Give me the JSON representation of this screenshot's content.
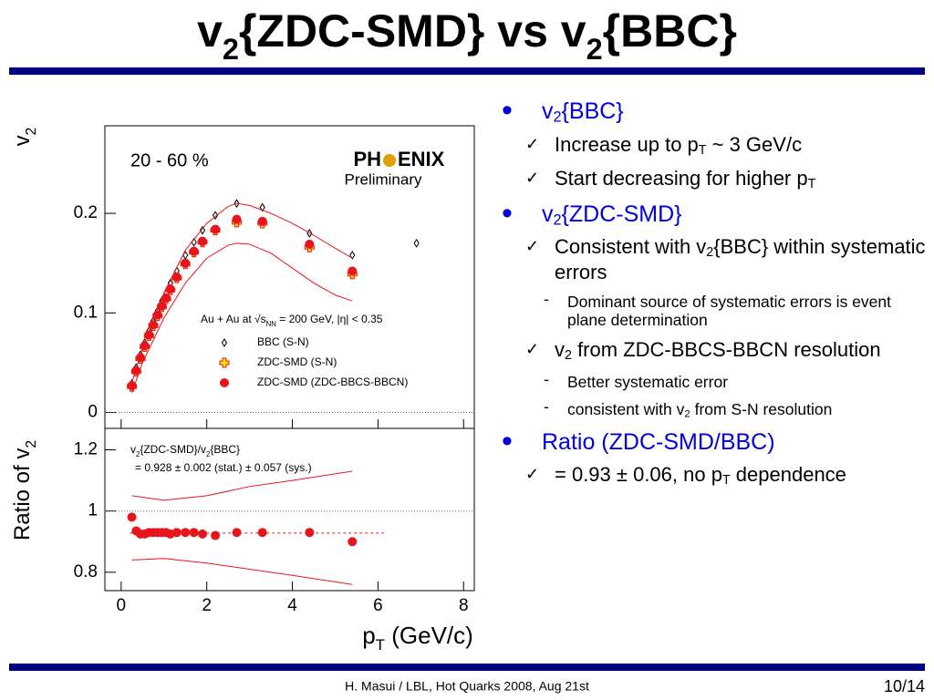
{
  "header": {
    "title_parts": [
      "v",
      "2",
      "{ZDC-SMD} vs v",
      "2",
      "{BBC}"
    ]
  },
  "chart_data": [
    {
      "type": "scatter",
      "ylabel_parts": [
        "v",
        "2"
      ],
      "xlim": [
        -0.38,
        8.25
      ],
      "ylim": [
        -0.016,
        0.288
      ],
      "xticks": [
        0,
        2,
        4,
        6,
        8
      ],
      "yticks": [
        0,
        0.1,
        0.2
      ],
      "hlines": [
        0
      ],
      "centrality": "20 - 60 %",
      "logo": {
        "left": "PH",
        "right": "ENIX",
        "sub": "Preliminary"
      },
      "legend_title_parts": [
        "Au + Au at √s",
        "NN",
        " = 200 GeV, |η| < 0.35"
      ],
      "series": [
        {
          "name": "BBC (S-N)",
          "color": "#000000",
          "marker": "diamond",
          "x": [
            0.25,
            0.35,
            0.45,
            0.55,
            0.65,
            0.75,
            0.85,
            0.95,
            1.05,
            1.15,
            1.3,
            1.5,
            1.7,
            1.9,
            2.2,
            2.7,
            3.3,
            4.4,
            5.4,
            6.9
          ],
          "values": [
            0.029,
            0.045,
            0.058,
            0.07,
            0.082,
            0.092,
            0.102,
            0.112,
            0.12,
            0.13,
            0.142,
            0.158,
            0.171,
            0.183,
            0.198,
            0.21,
            0.206,
            0.18,
            0.158,
            0.17
          ]
        },
        {
          "name": "ZDC-SMD (S-N)",
          "color": "#e8151b",
          "marker": "cross",
          "x": [
            0.25,
            0.35,
            0.45,
            0.55,
            0.65,
            0.75,
            0.85,
            0.95,
            1.05,
            1.15,
            1.3,
            1.5,
            1.7,
            1.9,
            2.2,
            2.7,
            3.3,
            4.4,
            5.4
          ],
          "values": [
            0.026,
            0.041,
            0.054,
            0.066,
            0.077,
            0.087,
            0.097,
            0.106,
            0.114,
            0.123,
            0.135,
            0.149,
            0.161,
            0.171,
            0.183,
            0.191,
            0.19,
            0.166,
            0.139
          ]
        },
        {
          "name": "ZDC-SMD (ZDC-BBCS-BBCN)",
          "color": "#e8151b",
          "marker": "circle",
          "x": [
            0.25,
            0.35,
            0.45,
            0.55,
            0.65,
            0.75,
            0.85,
            0.95,
            1.05,
            1.15,
            1.3,
            1.5,
            1.7,
            1.9,
            2.2,
            2.7,
            3.3,
            4.4,
            5.4
          ],
          "values": [
            0.027,
            0.042,
            0.055,
            0.067,
            0.078,
            0.088,
            0.098,
            0.107,
            0.115,
            0.124,
            0.136,
            0.15,
            0.162,
            0.172,
            0.184,
            0.194,
            0.192,
            0.169,
            0.142
          ]
        },
        {
          "color": "#e8151b",
          "marker": "line",
          "x": [
            0.25,
            0.5,
            1,
            1.5,
            2,
            2.5,
            2.7,
            3,
            3.5,
            4,
            4.5,
            5,
            5.4
          ],
          "values": [
            0.03,
            0.065,
            0.12,
            0.163,
            0.19,
            0.207,
            0.21,
            0.208,
            0.2,
            0.19,
            0.178,
            0.165,
            0.155
          ]
        },
        {
          "color": "#e8151b",
          "marker": "line",
          "x": [
            0.25,
            0.5,
            1,
            1.5,
            2,
            2.5,
            2.7,
            3,
            3.5,
            4,
            4.5,
            5,
            5.4
          ],
          "values": [
            0.02,
            0.05,
            0.095,
            0.13,
            0.155,
            0.168,
            0.17,
            0.169,
            0.16,
            0.145,
            0.13,
            0.118,
            0.112
          ]
        }
      ]
    },
    {
      "type": "scatter",
      "ylabel_parts": [
        "Ratio of v",
        "2"
      ],
      "xlabel_parts": [
        "p",
        "T",
        " (GeV/c)"
      ],
      "xlim": [
        -0.38,
        8.25
      ],
      "ylim": [
        0.74,
        1.27
      ],
      "xticks": [
        0,
        2,
        4,
        6,
        8
      ],
      "yticks": [
        0.8,
        1,
        1.2
      ],
      "hlines": [
        1
      ],
      "fit_line": {
        "y": 0.928,
        "x": [
          0.2,
          6.2
        ]
      },
      "annotation_parts": [
        "v",
        "2",
        "{ZDC-SMD}/v",
        "2",
        "{BBC}"
      ],
      "annotation2": "= 0.928 ± 0.002 (stat.) ± 0.057 (sys.)",
      "series": [
        {
          "color": "#e8151b",
          "marker": "circle",
          "x": [
            0.25,
            0.35,
            0.45,
            0.55,
            0.65,
            0.75,
            0.85,
            0.95,
            1.05,
            1.15,
            1.3,
            1.5,
            1.7,
            1.9,
            2.2,
            2.7,
            3.3,
            4.4,
            5.4
          ],
          "values": [
            0.98,
            0.935,
            0.925,
            0.925,
            0.93,
            0.93,
            0.93,
            0.93,
            0.93,
            0.925,
            0.93,
            0.93,
            0.93,
            0.925,
            0.92,
            0.93,
            0.93,
            0.93,
            0.9
          ]
        },
        {
          "color": "#e8151b",
          "marker": "line",
          "x": [
            0.25,
            1,
            2,
            3,
            4,
            5.4
          ],
          "values": [
            1.05,
            1.035,
            1.05,
            1.08,
            1.1,
            1.13
          ]
        },
        {
          "color": "#e8151b",
          "marker": "line",
          "x": [
            0.25,
            1,
            2,
            3,
            4,
            5.4
          ],
          "values": [
            0.84,
            0.845,
            0.83,
            0.81,
            0.79,
            0.76
          ]
        }
      ]
    }
  ],
  "bullets": [
    {
      "level": 1,
      "parts": [
        "v",
        "2",
        "{BBC}"
      ]
    },
    {
      "level": 2,
      "parts": [
        "Increase up to p",
        "T",
        " ~ 3 GeV/c"
      ]
    },
    {
      "level": 2,
      "parts": [
        "Start decreasing for higher p",
        "T"
      ]
    },
    {
      "level": 1,
      "parts": [
        "v",
        "2",
        "{ZDC-SMD}"
      ]
    },
    {
      "level": 2,
      "parts": [
        "Consistent with v",
        "2",
        "{BBC} within systematic errors"
      ]
    },
    {
      "level": 3,
      "parts": [
        "Dominant source of systematic errors is event plane determination"
      ]
    },
    {
      "level": 2,
      "parts": [
        "v",
        "2",
        " from ZDC-BBCS-BBCN resolution"
      ]
    },
    {
      "level": 3,
      "parts": [
        "Better systematic error"
      ]
    },
    {
      "level": 3,
      "parts": [
        "consistent with v",
        "2",
        " from S-N resolution"
      ]
    },
    {
      "level": 1,
      "parts": [
        "Ratio (ZDC-SMD/BBC)"
      ]
    },
    {
      "level": 2,
      "parts": [
        "= 0.93 ± 0.06, no p",
        "T",
        " dependence"
      ]
    }
  ],
  "footer": {
    "text": "H. Masui / LBL,  Hot Quarks 2008, Aug 21st",
    "page": "10/14"
  }
}
